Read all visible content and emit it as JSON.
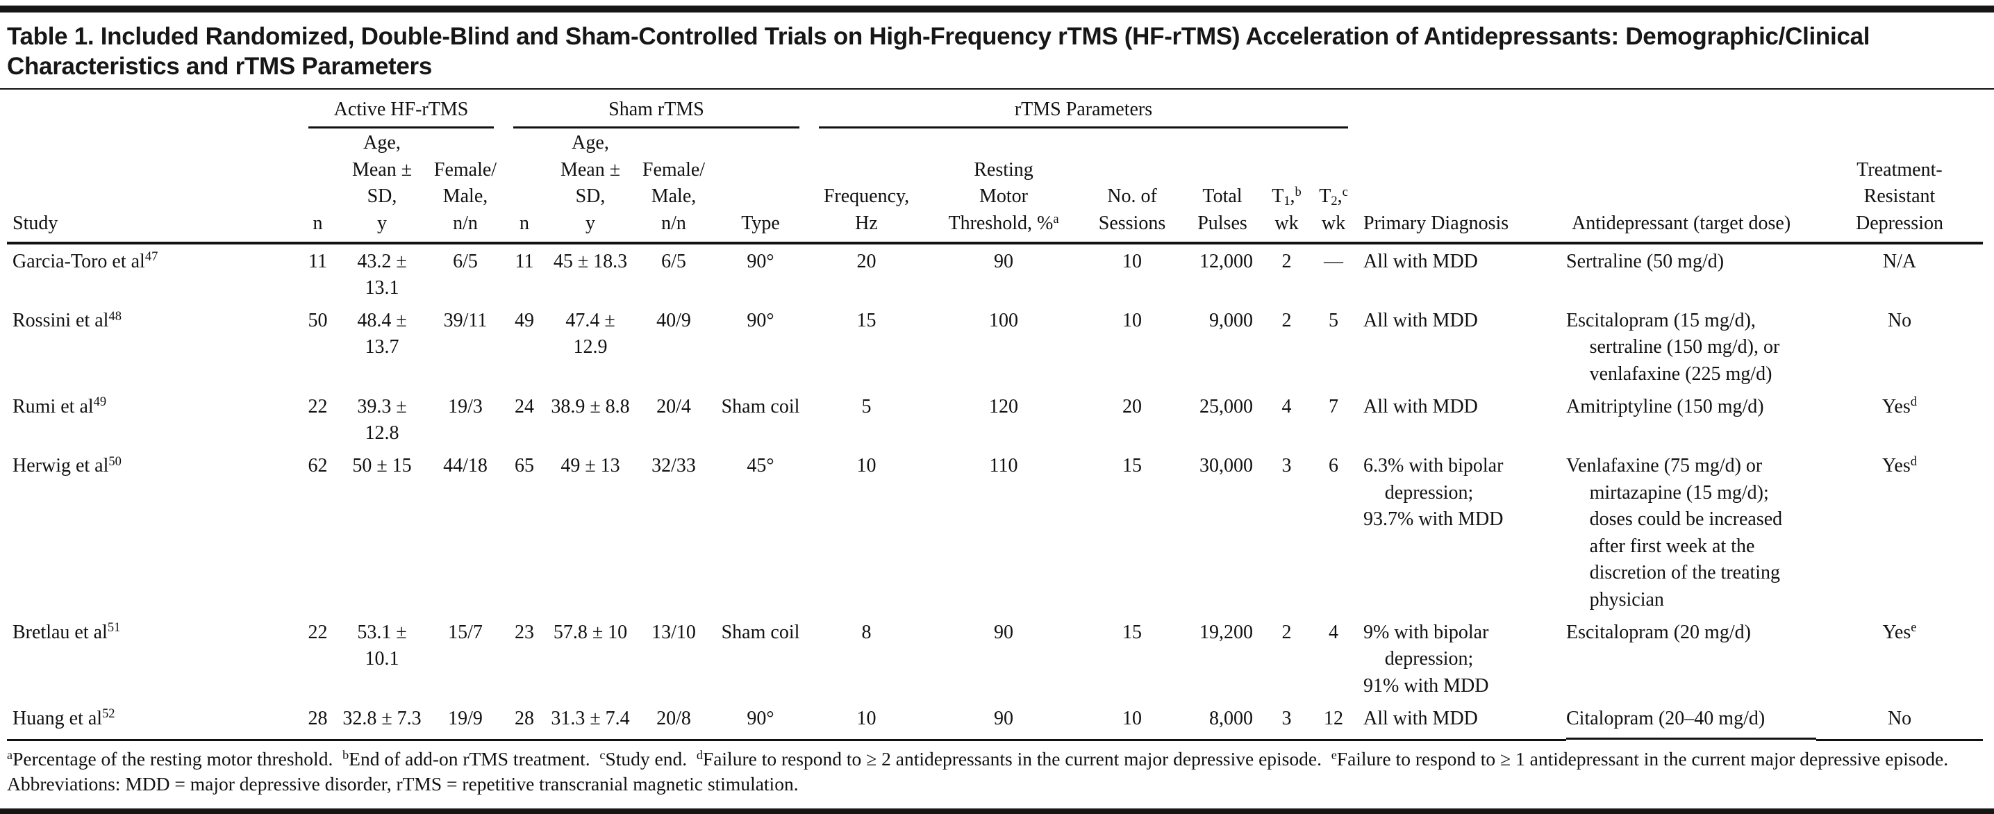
{
  "page": {
    "background_color": "#ffffff",
    "text_color": "#111111",
    "rule_color": "#161616",
    "title": "Table 1. Included Randomized, Double-Blind and Sham-Controlled Trials on High-Frequency rTMS (HF-rTMS) Acceleration of Antidepressants: Demographic/Clinical Characteristics and rTMS Parameters"
  },
  "table": {
    "group_headers": [
      {
        "id": "spacer-study",
        "label": "",
        "span": 1,
        "ruled": false
      },
      {
        "id": "active-hf-rtms",
        "label": "Active HF-rTMS",
        "span": 3,
        "ruled": true
      },
      {
        "id": "sham-rtms",
        "label": "Sham rTMS",
        "span": 4,
        "ruled": true
      },
      {
        "id": "rtms-parameters",
        "label": "rTMS Parameters",
        "span": 6,
        "ruled": true
      },
      {
        "id": "spacer-right",
        "label": "",
        "span": 3,
        "ruled": false
      }
    ],
    "columns": [
      {
        "id": "study",
        "lines": [
          "Study"
        ],
        "align": "left"
      },
      {
        "id": "active-n",
        "lines": [
          "n"
        ],
        "align": "center"
      },
      {
        "id": "active-age",
        "lines": [
          "Age,",
          "Mean ± SD,",
          "y"
        ],
        "align": "center"
      },
      {
        "id": "active-female-male",
        "lines": [
          "Female/",
          "Male,",
          "n/n"
        ],
        "align": "center"
      },
      {
        "id": "sham-n",
        "lines": [
          "n"
        ],
        "align": "center"
      },
      {
        "id": "sham-age",
        "lines": [
          "Age,",
          "Mean ± SD,",
          "y"
        ],
        "align": "center"
      },
      {
        "id": "sham-female-male",
        "lines": [
          "Female/",
          "Male,",
          "n/n"
        ],
        "align": "center"
      },
      {
        "id": "sham-type",
        "lines": [
          "Type"
        ],
        "align": "center"
      },
      {
        "id": "frequency-hz",
        "lines": [
          "Frequency,",
          "Hz"
        ],
        "align": "center"
      },
      {
        "id": "resting-motor-threshold",
        "lines": [
          "Resting",
          "Motor",
          "Threshold, %^{a}"
        ],
        "align": "center"
      },
      {
        "id": "no-of-sessions",
        "lines": [
          "No. of",
          "Sessions"
        ],
        "align": "center"
      },
      {
        "id": "total-pulses",
        "lines": [
          "Total",
          "Pulses"
        ],
        "align": "center"
      },
      {
        "id": "t1-wk",
        "lines": [
          "T_{1},^{b}",
          "wk"
        ],
        "align": "center"
      },
      {
        "id": "t2-wk",
        "lines": [
          "T_{2},^{c}",
          "wk"
        ],
        "align": "center"
      },
      {
        "id": "primary-diagnosis",
        "lines": [
          "Primary Diagnosis"
        ],
        "align": "left"
      },
      {
        "id": "antidepressant",
        "lines": [
          "Antidepressant (target dose)"
        ],
        "align": "left"
      },
      {
        "id": "treatment-resistant-depression",
        "lines": [
          "Treatment-",
          "Resistant",
          "Depression"
        ],
        "align": "center"
      }
    ],
    "rows": [
      {
        "cells": [
          "Garcia-Toro et al^{47}",
          "11",
          "43.2 ± 13.1",
          "6/5",
          "11",
          "45 ± 18.3",
          "6/5",
          "90°",
          "20",
          "90",
          "10",
          "12,000",
          "2",
          "—",
          [
            "All with MDD"
          ],
          "Sertraline (50 mg/d)",
          "N/A"
        ]
      },
      {
        "cells": [
          "Rossini et al^{48}",
          "50",
          "48.4 ± 13.7",
          "39/11",
          "49",
          "47.4 ± 12.9",
          "40/9",
          "90°",
          "15",
          "100",
          "10",
          "9,000",
          "2",
          "5",
          [
            "All with MDD"
          ],
          "Escitalopram (15 mg/d), sertraline (150 mg/d), or venlafaxine (225 mg/d)",
          "No"
        ]
      },
      {
        "cells": [
          "Rumi et al^{49}",
          "22",
          "39.3 ± 12.8",
          "19/3",
          "24",
          "38.9 ± 8.8",
          "20/4",
          "Sham coil",
          "5",
          "120",
          "20",
          "25,000",
          "4",
          "7",
          [
            "All with MDD"
          ],
          "Amitriptyline (150 mg/d)",
          "Yes^{d}"
        ]
      },
      {
        "cells": [
          "Herwig et al^{50}",
          "62",
          "50 ± 15",
          "44/18",
          "65",
          "49 ± 13",
          "32/33",
          "45°",
          "10",
          "110",
          "15",
          "30,000",
          "3",
          "6",
          [
            "6.3% with bipolar depression;",
            "93.7% with MDD"
          ],
          "Venlafaxine (75 mg/d) or mirtazapine (15 mg/d); doses could be increased after first week at the discretion of the treating physician",
          "Yes^{d}"
        ]
      },
      {
        "cells": [
          "Bretlau et al^{51}",
          "22",
          "53.1 ± 10.1",
          "15/7",
          "23",
          "57.8 ± 10",
          "13/10",
          "Sham coil",
          "8",
          "90",
          "15",
          "19,200",
          "2",
          "4",
          [
            "9% with bipolar depression;",
            "91% with MDD"
          ],
          "Escitalopram (20 mg/d)",
          "Yes^{e}"
        ]
      },
      {
        "cells": [
          "Huang et al^{52}",
          "28",
          "32.8 ± 7.3",
          "19/9",
          "28",
          "31.3 ± 7.4",
          "20/8",
          "90°",
          "10",
          "90",
          "10",
          "8,000",
          "3",
          "12",
          [
            "All with MDD"
          ],
          "Citalopram (20–40 mg/d)",
          "No"
        ]
      }
    ]
  },
  "footnotes": [
    "^{a}Percentage of the resting motor threshold.  ^{b}End of add-on rTMS treatment.  ^{c}Study end.  ^{d}Failure to respond to ≥ 2 antidepressants in the current major depressive episode.  ^{e}Failure to respond to ≥ 1 antidepressant in the current major depressive episode.",
    "Abbreviations: MDD = major depressive disorder, rTMS = repetitive transcranial magnetic stimulation."
  ]
}
